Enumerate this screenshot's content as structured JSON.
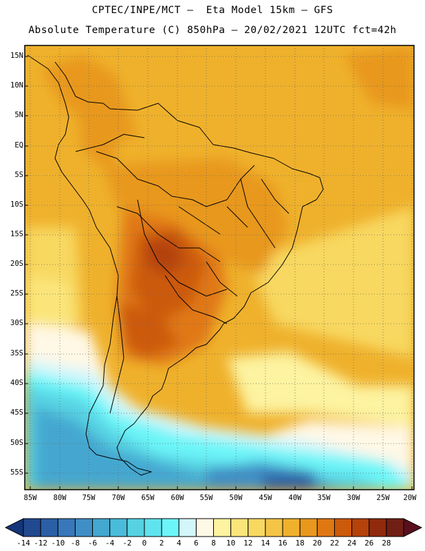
{
  "header": {
    "line1": "CPTEC/INPE/MCT –  Eta Model 15km – GFS",
    "line2": "Absolute Temperature (C) 850hPa – 20/02/2021 12UTC fct=42h"
  },
  "lat_labels": [
    "15N",
    "10N",
    "5N",
    "EQ",
    "5S",
    "10S",
    "15S",
    "20S",
    "25S",
    "30S",
    "35S",
    "40S",
    "45S",
    "50S",
    "55S"
  ],
  "lon_labels": [
    "85W",
    "80W",
    "75W",
    "70W",
    "65W",
    "60W",
    "55W",
    "50W",
    "45W",
    "40W",
    "35W",
    "30W",
    "25W",
    "20W"
  ],
  "colorbar": {
    "labels": [
      "-14",
      "-12",
      "-10",
      "-8",
      "-6",
      "-4",
      "-2",
      "0",
      "2",
      "4",
      "6",
      "8",
      "10",
      "12",
      "14",
      "16",
      "18",
      "20",
      "22",
      "24",
      "26",
      "28"
    ],
    "colors": [
      "#21498f",
      "#2b5fa5",
      "#3877b9",
      "#3f8fc6",
      "#44a7d0",
      "#49bcd9",
      "#56d2e2",
      "#5fe4ee",
      "#6cf5f8",
      "#d3f6fb",
      "#fff8e6",
      "#fdf3a0",
      "#fbe57a",
      "#f8d861",
      "#f3c445",
      "#efb12c",
      "#e8981c",
      "#e07812",
      "#cc5a0b",
      "#b4420a",
      "#8f2a0c",
      "#701f14"
    ]
  },
  "icons": [
    "triangle-left-icon",
    "triangle-right-icon"
  ]
}
